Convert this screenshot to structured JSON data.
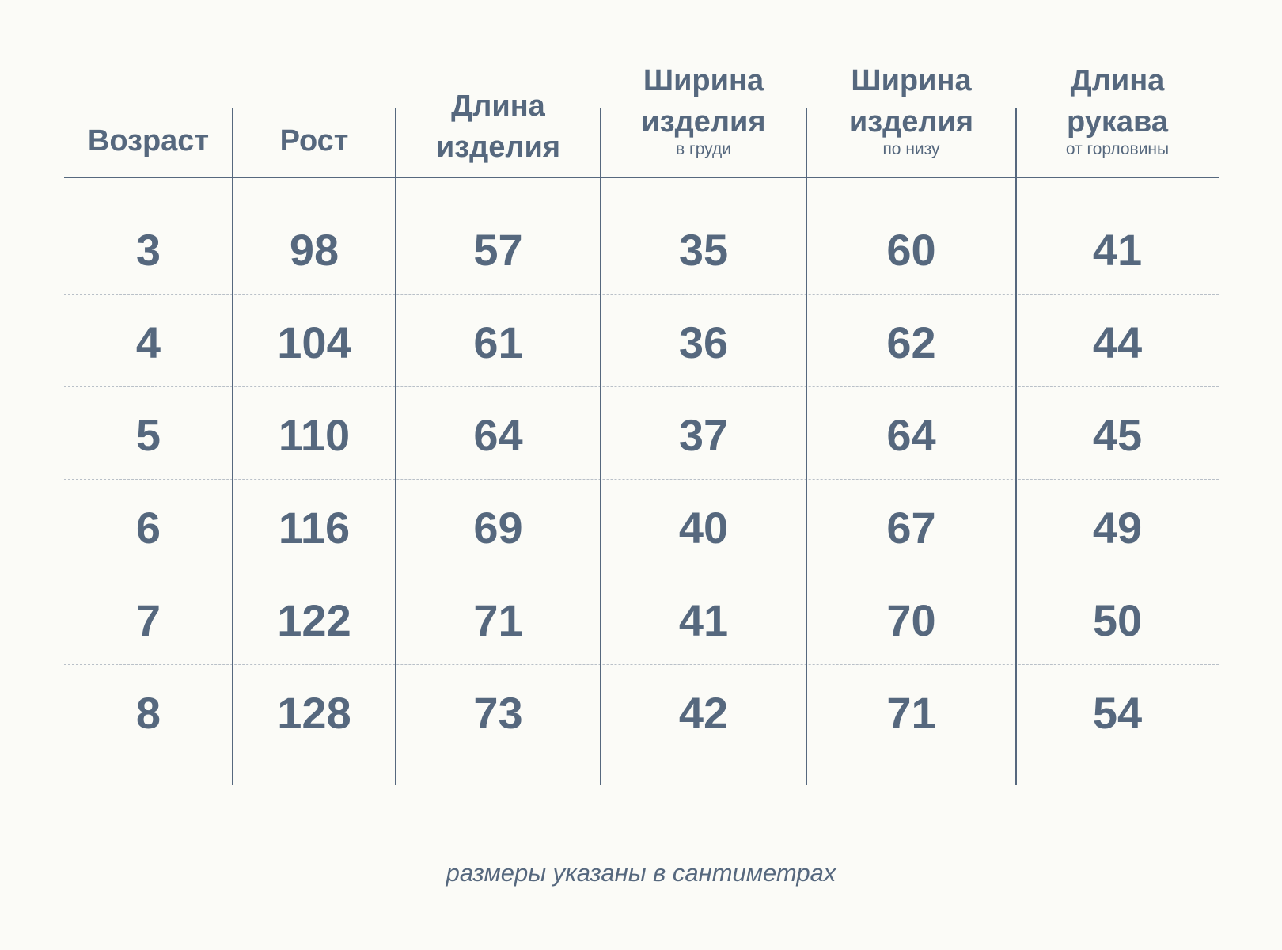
{
  "table": {
    "headers": [
      {
        "lines": [
          "Возраст"
        ],
        "sub": ""
      },
      {
        "lines": [
          "Рост"
        ],
        "sub": ""
      },
      {
        "lines": [
          "Длина",
          "изделия"
        ],
        "sub": ""
      },
      {
        "lines": [
          "Ширина",
          "изделия"
        ],
        "sub": "в груди"
      },
      {
        "lines": [
          "Ширина",
          "изделия"
        ],
        "sub": "по низу"
      },
      {
        "lines": [
          "Длина",
          "рукава"
        ],
        "sub": "от горловины"
      }
    ],
    "rows": [
      [
        "3",
        "98",
        "57",
        "35",
        "60",
        "41"
      ],
      [
        "4",
        "104",
        "61",
        "36",
        "62",
        "44"
      ],
      [
        "5",
        "110",
        "64",
        "37",
        "64",
        "45"
      ],
      [
        "6",
        "116",
        "69",
        "40",
        "67",
        "49"
      ],
      [
        "7",
        "122",
        "71",
        "41",
        "70",
        "50"
      ],
      [
        "8",
        "128",
        "73",
        "42",
        "71",
        "54"
      ]
    ]
  },
  "footnote": "размеры указаны в сантиметрах",
  "colors": {
    "text": "#56687e",
    "background": "#fbfbf7",
    "dashed_rule": "#b9c0c8"
  }
}
